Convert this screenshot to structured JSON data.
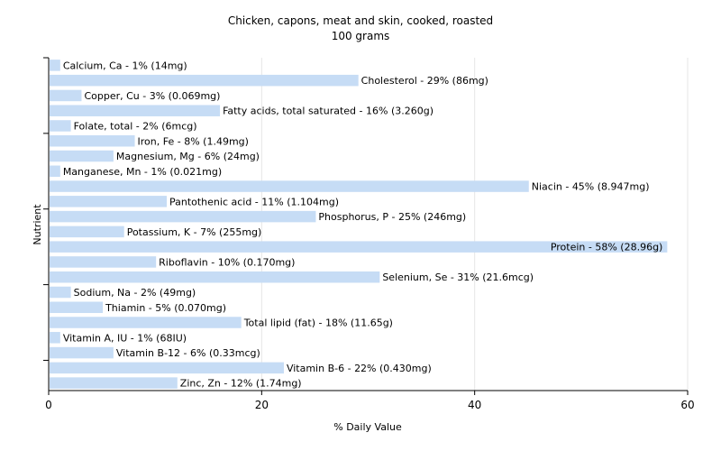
{
  "chart_data": {
    "type": "bar",
    "orientation": "horizontal",
    "title": "Chicken, capons, meat and skin, cooked, roasted",
    "subtitle": "100 grams",
    "xlabel": "% Daily Value",
    "ylabel": "Nutrient",
    "xlim": [
      0,
      60
    ],
    "xticks": [
      0,
      20,
      40,
      60
    ],
    "grid": true,
    "bar_color": "#c6dcf5",
    "categories": [
      "Calcium, Ca",
      "Cholesterol",
      "Copper, Cu",
      "Fatty acids, total saturated",
      "Folate, total",
      "Iron, Fe",
      "Magnesium, Mg",
      "Manganese, Mn",
      "Niacin",
      "Pantothenic acid",
      "Phosphorus, P",
      "Potassium, K",
      "Protein",
      "Riboflavin",
      "Selenium, Se",
      "Sodium, Na",
      "Thiamin",
      "Total lipid (fat)",
      "Vitamin A, IU",
      "Vitamin B-12",
      "Vitamin B-6",
      "Zinc, Zn"
    ],
    "values": [
      1,
      29,
      3,
      16,
      2,
      8,
      6,
      1,
      45,
      11,
      25,
      7,
      58,
      10,
      31,
      2,
      5,
      18,
      1,
      6,
      22,
      12
    ],
    "labels": [
      "Calcium, Ca - 1% (14mg)",
      "Cholesterol - 29% (86mg)",
      "Copper, Cu - 3% (0.069mg)",
      "Fatty acids, total saturated - 16% (3.260g)",
      "Folate, total - 2% (6mcg)",
      "Iron, Fe - 8% (1.49mg)",
      "Magnesium, Mg - 6% (24mg)",
      "Manganese, Mn - 1% (0.021mg)",
      "Niacin - 45% (8.947mg)",
      "Pantothenic acid - 11% (1.104mg)",
      "Phosphorus, P - 25% (246mg)",
      "Potassium, K - 7% (255mg)",
      "Protein - 58% (28.96g)",
      "Riboflavin - 10% (0.170mg)",
      "Selenium, Se - 31% (21.6mcg)",
      "Sodium, Na - 2% (49mg)",
      "Thiamin - 5% (0.070mg)",
      "Total lipid (fat) - 18% (11.65g)",
      "Vitamin A, IU - 1% (68IU)",
      "Vitamin B-12 - 6% (0.33mcg)",
      "Vitamin B-6 - 22% (0.430mg)",
      "Zinc, Zn - 12% (1.74mg)"
    ]
  }
}
